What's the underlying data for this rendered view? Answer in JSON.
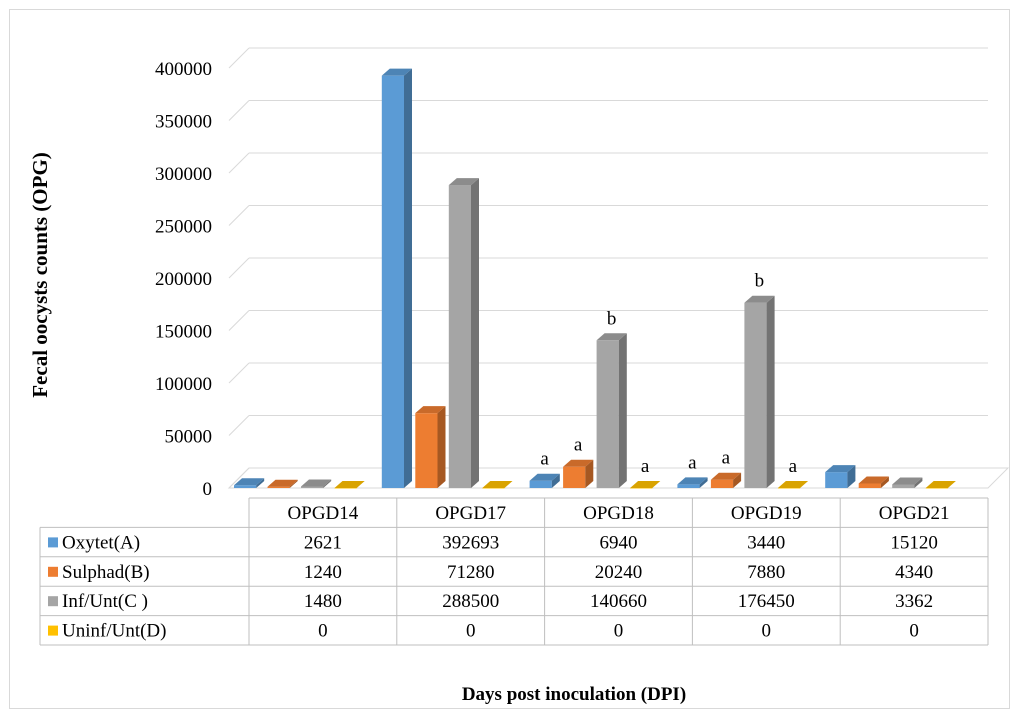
{
  "chart_data": {
    "type": "bar",
    "style": "3d-clustered-column-with-data-table",
    "categories": [
      "OPGD14",
      "OPGD17",
      "OPGD18",
      "OPGD19",
      "OPGD21"
    ],
    "series": [
      {
        "name": "Oxytet(A)",
        "color": "#5b9bd5",
        "values": [
          2621,
          392693,
          6940,
          3440,
          15120
        ]
      },
      {
        "name": "Sulphad(B)",
        "color": "#ed7d31",
        "values": [
          1240,
          71280,
          20240,
          7880,
          4340
        ]
      },
      {
        "name": "Inf/Unt(C )",
        "color": "#a5a5a5",
        "values": [
          1480,
          288500,
          140660,
          176450,
          3362
        ]
      },
      {
        "name": "Uninf/Unt(D)",
        "color": "#ffc000",
        "values": [
          0,
          0,
          0,
          0,
          0
        ]
      }
    ],
    "ylabel": "Fecal oocysts counts  (OPG)",
    "xlabel": "Days post inoculation (DPI)",
    "ylim": [
      0,
      400000
    ],
    "yticks": [
      "0",
      "50000",
      "100000",
      "150000",
      "200000",
      "250000",
      "300000",
      "350000",
      "400000"
    ],
    "grid": true,
    "legend": "data-table",
    "annotations": [
      {
        "category": 2,
        "series": 0,
        "text": "a"
      },
      {
        "category": 2,
        "series": 1,
        "text": "a"
      },
      {
        "category": 2,
        "series": 2,
        "text": "b"
      },
      {
        "category": 2,
        "series": 3,
        "text": "a"
      },
      {
        "category": 3,
        "series": 0,
        "text": "a"
      },
      {
        "category": 3,
        "series": 1,
        "text": "a"
      },
      {
        "category": 3,
        "series": 2,
        "text": "b"
      },
      {
        "category": 3,
        "series": 3,
        "text": "a"
      }
    ]
  }
}
